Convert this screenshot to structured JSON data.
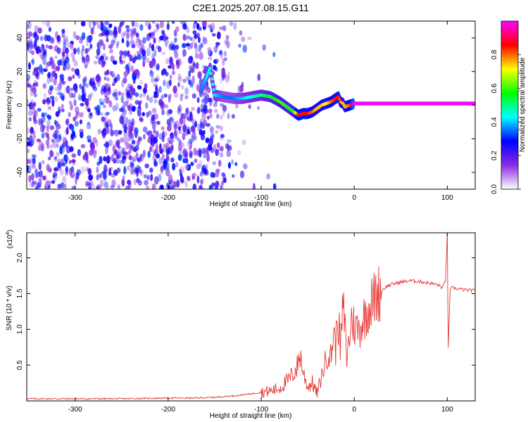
{
  "page_title": "C2E1.2025.207.08.15.G11",
  "chart_data": [
    {
      "type": "heatmap",
      "title": "C2E1.2025.207.08.15.G11",
      "xlabel": "Height of straight line (km)",
      "ylabel": "Frequency (Hz)",
      "xlim": [
        -352,
        130
      ],
      "ylim": [
        -50,
        50
      ],
      "x_ticks": [
        -300,
        -200,
        -100,
        0,
        100
      ],
      "y_ticks": [
        -40,
        -20,
        0,
        20,
        40
      ],
      "grid": false,
      "colorbar": {
        "label": "Normalized spectral amplitude",
        "range": [
          0,
          1
        ],
        "ticks": [
          0.0,
          0.2,
          0.4,
          0.6,
          0.8
        ],
        "colors": [
          "#ffffff",
          "#8a2be2",
          "#0000ff",
          "#00ffff",
          "#00ff00",
          "#ffff00",
          "#ff0000",
          "#ff00ff"
        ]
      },
      "trace": {
        "name": "",
        "x": [
          -165,
          -160,
          -155,
          -150,
          -140,
          -130,
          -120,
          -110,
          -100,
          -90,
          -80,
          -75,
          -70,
          -65,
          -60,
          -55,
          -50,
          -45,
          -40,
          -35,
          -30,
          -25,
          -20,
          -17,
          -15,
          -12,
          -10,
          -5,
          0,
          20,
          60,
          95,
          100,
          130
        ],
        "y": [
          8,
          15,
          22,
          6,
          5,
          4,
          4,
          5,
          6,
          5,
          2,
          0,
          -2,
          -4,
          -6,
          -5,
          -5,
          -4,
          -2,
          0,
          1,
          2,
          4,
          5,
          2,
          1,
          -1,
          0,
          1,
          1,
          1,
          1,
          1,
          1
        ],
        "amplitude": [
          0.35,
          0.4,
          0.45,
          0.42,
          0.35,
          0.35,
          0.4,
          0.45,
          0.5,
          0.55,
          0.6,
          0.6,
          0.55,
          0.6,
          0.85,
          0.85,
          0.85,
          0.8,
          0.75,
          0.75,
          0.7,
          0.8,
          0.85,
          0.85,
          0.8,
          0.75,
          0.75,
          0.8,
          1.0,
          1.0,
          1.0,
          1.0,
          1.0,
          1.0
        ]
      },
      "noise_region": {
        "x_from": -352,
        "x_to": -120,
        "amplitude_max": 0.25
      }
    },
    {
      "type": "line",
      "xlabel": "Height of straight line (km)",
      "ylabel": "SNR (10 * v/v)",
      "y_scale_label": "(x10^4)",
      "y_scale_text": "(x10",
      "y_scale_exp": "4",
      "xlim": [
        -352,
        130
      ],
      "ylim": [
        0,
        2.35
      ],
      "x_ticks": [
        -300,
        -200,
        -100,
        0,
        100
      ],
      "y_ticks": [
        0.5,
        1.0,
        1.5,
        2.0
      ],
      "grid": false,
      "series": [
        {
          "name": "",
          "color": "#e53935",
          "x": [
            -352,
            -300,
            -250,
            -200,
            -170,
            -150,
            -130,
            -110,
            -90,
            -80,
            -70,
            -62,
            -58,
            -55,
            -50,
            -45,
            -40,
            -35,
            -32,
            -28,
            -25,
            -22,
            -20,
            -18,
            -15,
            -12,
            -10,
            -8,
            -5,
            -3,
            0,
            5,
            10,
            15,
            20,
            25,
            30,
            35,
            40,
            50,
            60,
            70,
            80,
            90,
            95,
            98,
            100,
            101,
            103,
            105,
            110,
            120,
            130
          ],
          "y": [
            0.03,
            0.03,
            0.03,
            0.04,
            0.04,
            0.05,
            0.07,
            0.1,
            0.14,
            0.18,
            0.3,
            0.45,
            0.65,
            0.4,
            0.2,
            0.25,
            0.1,
            0.35,
            0.5,
            0.7,
            0.6,
            1.0,
            0.7,
            1.25,
            0.75,
            1.3,
            1.05,
            0.6,
            0.9,
            1.15,
            1.05,
            1.0,
            1.15,
            1.3,
            1.4,
            1.5,
            1.55,
            1.6,
            1.63,
            1.66,
            1.68,
            1.67,
            1.65,
            1.62,
            1.58,
            1.68,
            2.35,
            0.72,
            1.55,
            1.58,
            1.57,
            1.55,
            1.54
          ]
        }
      ]
    }
  ]
}
